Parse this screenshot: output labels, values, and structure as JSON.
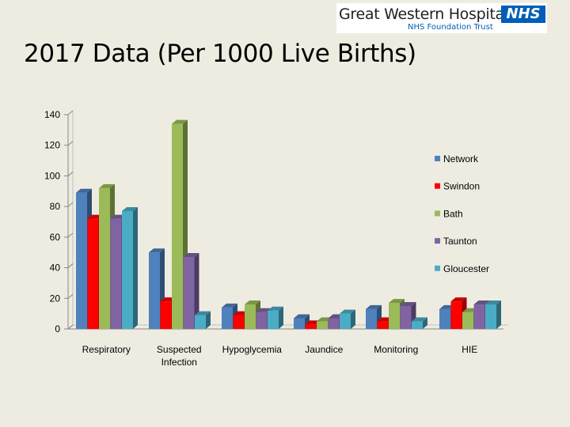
{
  "logo": {
    "name": "Great Western Hospitals",
    "nhs": "NHS",
    "trust": "NHS Foundation Trust"
  },
  "chart_data": {
    "type": "bar",
    "title": "2017 Data (Per 1000 Live Births)",
    "categories": [
      "Respiratory",
      "Suspected Infection",
      "Hypoglycemia",
      "Jaundice",
      "Monitoring",
      "HIE"
    ],
    "series": [
      {
        "name": "Network",
        "color": "#4f81bd",
        "values": [
          89,
          50,
          14,
          7,
          13,
          13
        ]
      },
      {
        "name": "Swindon",
        "color": "#ff0000",
        "values": [
          72,
          18,
          9,
          3,
          5,
          18
        ]
      },
      {
        "name": "Bath",
        "color": "#9bbb59",
        "values": [
          92,
          134,
          16,
          5,
          17,
          11
        ]
      },
      {
        "name": "Taunton",
        "color": "#8064a2",
        "values": [
          72,
          47,
          11,
          7,
          15,
          16
        ]
      },
      {
        "name": "Gloucester",
        "color": "#4bacc6",
        "values": [
          77,
          9,
          12,
          10,
          5,
          16
        ]
      }
    ],
    "ylim": [
      0,
      140
    ],
    "yticks": [
      0,
      20,
      40,
      60,
      80,
      100,
      120,
      140
    ],
    "legend_position": "right",
    "grid": false
  }
}
